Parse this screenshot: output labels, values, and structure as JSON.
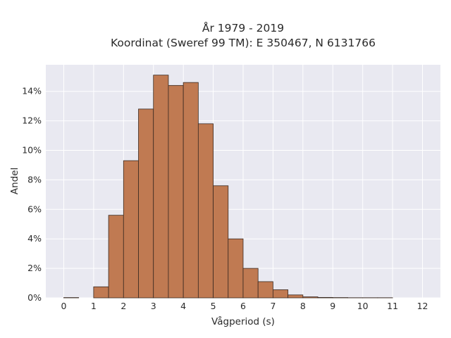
{
  "title_line1": "År 1979 - 2019",
  "title_line2": "Koordinat (Sweref 99 TM): E 350467, N 6131766",
  "colors": {
    "bar": "#c07a52",
    "bar_edge": "#3a2a22",
    "plot_bg": "#e9e9f1",
    "grid": "#ffffff"
  },
  "chart_data": {
    "type": "bar",
    "title": "År 1979 - 2019\nKoordinat (Sweref 99 TM): E 350467, N 6131766",
    "xlabel": "Vågperiod (s)",
    "ylabel": "Andel",
    "xlim": [
      -0.6,
      12.6
    ],
    "ylim": [
      0,
      15.8
    ],
    "x_ticks": [
      0,
      1,
      2,
      3,
      4,
      5,
      6,
      7,
      8,
      9,
      10,
      11,
      12
    ],
    "y_ticks": [
      0,
      2,
      4,
      6,
      8,
      10,
      12,
      14
    ],
    "y_tick_labels": [
      "0%",
      "2%",
      "4%",
      "6%",
      "8%",
      "10%",
      "12%",
      "14%"
    ],
    "bin_width": 0.5,
    "bins": [
      {
        "x0": 0.0,
        "value": 0.02
      },
      {
        "x0": 0.5,
        "value": 0.0
      },
      {
        "x0": 1.0,
        "value": 0.75
      },
      {
        "x0": 1.5,
        "value": 5.6
      },
      {
        "x0": 2.0,
        "value": 9.3
      },
      {
        "x0": 2.5,
        "value": 12.8
      },
      {
        "x0": 3.0,
        "value": 15.1
      },
      {
        "x0": 3.5,
        "value": 14.4
      },
      {
        "x0": 4.0,
        "value": 14.6
      },
      {
        "x0": 4.5,
        "value": 11.8
      },
      {
        "x0": 5.0,
        "value": 7.6
      },
      {
        "x0": 5.5,
        "value": 4.0
      },
      {
        "x0": 6.0,
        "value": 2.0
      },
      {
        "x0": 6.5,
        "value": 1.1
      },
      {
        "x0": 7.0,
        "value": 0.55
      },
      {
        "x0": 7.5,
        "value": 0.2
      },
      {
        "x0": 8.0,
        "value": 0.07
      },
      {
        "x0": 8.5,
        "value": 0.03
      },
      {
        "x0": 9.0,
        "value": 0.02
      },
      {
        "x0": 9.5,
        "value": 0.01
      },
      {
        "x0": 10.0,
        "value": 0.01
      },
      {
        "x0": 10.5,
        "value": 0.01
      }
    ],
    "grid": true,
    "legend": "none"
  }
}
